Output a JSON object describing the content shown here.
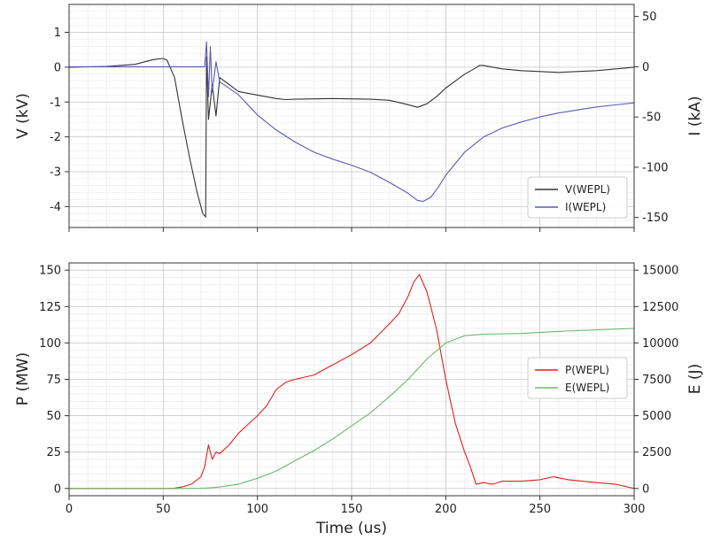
{
  "chart_data": [
    {
      "type": "line",
      "xlabel": "",
      "ylabel": "V (kV)",
      "ylabel_right": "I (kA)",
      "xlim": [
        0,
        300
      ],
      "ylim": [
        -4.6,
        1.8
      ],
      "ylim_right": [
        -160,
        62
      ],
      "xticks": [
        0,
        50,
        100,
        150,
        200,
        250,
        300
      ],
      "yticks": [
        -4,
        -3,
        -2,
        -1,
        0,
        1
      ],
      "yticks_right": [
        -150,
        -100,
        -50,
        0,
        50
      ],
      "grid": true,
      "legend": "lower-right",
      "series": [
        {
          "name": "V(WEPL)",
          "axis": "left",
          "color": "#333333",
          "x": [
            0,
            20,
            35,
            45,
            50,
            52,
            56,
            60,
            64,
            68,
            71,
            72.5,
            73,
            74,
            76,
            78,
            80,
            85,
            90,
            100,
            110,
            115,
            120,
            140,
            160,
            170,
            178,
            185,
            190,
            195,
            200,
            205,
            210,
            215,
            218,
            220,
            225,
            230,
            240,
            260,
            280,
            300
          ],
          "y": [
            0,
            0.02,
            0.08,
            0.22,
            0.25,
            0.2,
            -0.3,
            -1.5,
            -2.6,
            -3.6,
            -4.2,
            -4.3,
            0.3,
            -1.5,
            -0.5,
            -1.4,
            -0.3,
            -0.5,
            -0.7,
            -0.8,
            -0.9,
            -0.93,
            -0.92,
            -0.9,
            -0.92,
            -0.95,
            -1.05,
            -1.15,
            -1.05,
            -0.85,
            -0.6,
            -0.4,
            -0.2,
            -0.05,
            0.05,
            0.05,
            0.0,
            -0.05,
            -0.1,
            -0.15,
            -0.1,
            0.0
          ]
        },
        {
          "name": "I(WEPL)",
          "axis": "right",
          "color": "#5a5ab8",
          "x": [
            0,
            20,
            40,
            60,
            70,
            72,
            73,
            74,
            75,
            76,
            78,
            80,
            90,
            100,
            110,
            120,
            130,
            140,
            150,
            160,
            170,
            180,
            185,
            188,
            192,
            196,
            200,
            210,
            220,
            230,
            240,
            250,
            260,
            270,
            280,
            290,
            300
          ],
          "y": [
            0,
            0,
            0,
            0,
            0,
            0,
            25,
            -30,
            20,
            -25,
            5,
            -15,
            -28,
            -48,
            -63,
            -75,
            -85,
            -92,
            -98,
            -105,
            -115,
            -126,
            -133,
            -134,
            -130,
            -120,
            -108,
            -85,
            -70,
            -61,
            -55,
            -50,
            -46,
            -43,
            -40,
            -38,
            -36
          ]
        }
      ]
    },
    {
      "type": "line",
      "xlabel": "Time (us)",
      "ylabel": "P (MW)",
      "ylabel_right": "E (J)",
      "xlim": [
        0,
        300
      ],
      "ylim": [
        -5,
        155
      ],
      "ylim_right": [
        -500,
        15500
      ],
      "xticks": [
        0,
        50,
        100,
        150,
        200,
        250,
        300
      ],
      "yticks": [
        0,
        25,
        50,
        75,
        100,
        125,
        150
      ],
      "yticks_right": [
        0,
        2500,
        5000,
        7500,
        10000,
        12500,
        15000
      ],
      "grid": true,
      "legend": "center-right",
      "series": [
        {
          "name": "P(WEPL)",
          "axis": "left",
          "color": "#e02020",
          "x": [
            0,
            55,
            60,
            65,
            70,
            72,
            74,
            76,
            78,
            80,
            85,
            90,
            95,
            100,
            105,
            110,
            115,
            120,
            130,
            140,
            150,
            160,
            170,
            175,
            180,
            183,
            186,
            190,
            195,
            200,
            205,
            210,
            213,
            216,
            220,
            225,
            230,
            240,
            250,
            257,
            265,
            280,
            290,
            300
          ],
          "y": [
            0,
            0,
            1,
            3,
            8,
            15,
            30,
            20,
            25,
            24,
            30,
            38,
            44,
            50,
            57,
            68,
            73,
            75,
            78,
            85,
            92,
            100,
            113,
            120,
            132,
            142,
            147,
            135,
            110,
            75,
            45,
            25,
            15,
            3,
            4,
            3,
            5,
            5,
            6,
            8,
            6,
            4,
            3,
            0
          ]
        },
        {
          "name": "E(WEPL)",
          "axis": "right",
          "color": "#6ab86a",
          "x": [
            0,
            60,
            70,
            75,
            80,
            90,
            100,
            110,
            120,
            130,
            140,
            150,
            160,
            170,
            180,
            190,
            200,
            210,
            220,
            240,
            260,
            280,
            300
          ],
          "y": [
            0,
            0,
            10,
            40,
            100,
            300,
            700,
            1200,
            1900,
            2600,
            3400,
            4300,
            5200,
            6300,
            7500,
            8900,
            10000,
            10500,
            10600,
            10650,
            10800,
            10900,
            11000
          ]
        }
      ]
    }
  ]
}
